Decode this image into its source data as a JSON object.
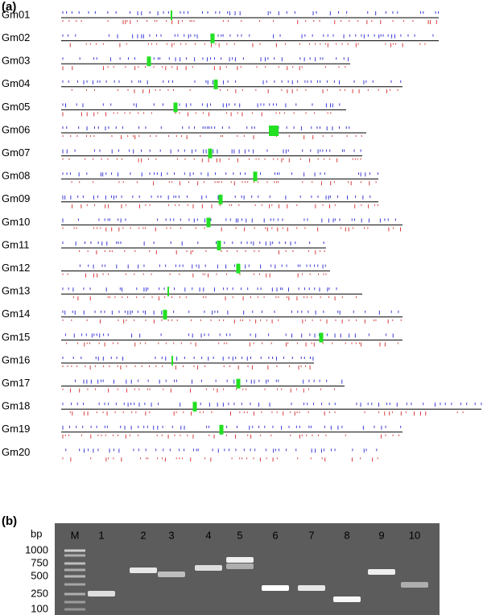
{
  "panel_a": {
    "label": "(a)",
    "chromosomes": [
      "Gm01",
      "Gm02",
      "Gm03",
      "Gm04",
      "Gm05",
      "Gm06",
      "Gm07",
      "Gm08",
      "Gm09",
      "Gm10",
      "Gm11",
      "Gm12",
      "Gm13",
      "Gm14",
      "Gm15",
      "Gm16",
      "Gm17",
      "Gm18",
      "Gm19",
      "Gm20"
    ]
  },
  "panel_b": {
    "label": "(b)",
    "unit": "bp",
    "lanes": [
      "M",
      "1",
      "2",
      "3",
      "4",
      "5",
      "6",
      "7",
      "8",
      "9",
      "10"
    ],
    "sizes": [
      1000,
      750,
      500,
      250,
      100
    ]
  }
}
